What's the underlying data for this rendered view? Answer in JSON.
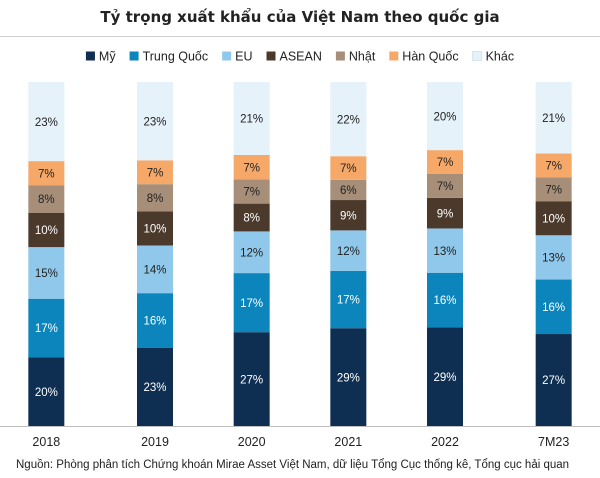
{
  "chart_data": {
    "type": "bar",
    "stacked": true,
    "normalized": true,
    "title": "Tỷ trọng xuất khẩu của Việt Nam theo quốc gia",
    "categories": [
      "2018",
      "2019",
      "2020",
      "2021",
      "2022",
      "7M23"
    ],
    "ylim": [
      0,
      100
    ],
    "grid": false,
    "legend_position": "top",
    "series": [
      {
        "name": "Mỹ",
        "color": "#0f2f52",
        "values": [
          20,
          23,
          27,
          29,
          29,
          27
        ],
        "labels": [
          "20%",
          "23%",
          "27%",
          "29%",
          "29%",
          "27%"
        ]
      },
      {
        "name": "Trung Quốc",
        "color": "#0b85bb",
        "values": [
          17,
          16,
          17,
          17,
          16,
          16
        ],
        "labels": [
          "17%",
          "16%",
          "17%",
          "17%",
          "16%",
          "16%"
        ]
      },
      {
        "name": "EU",
        "color": "#8fc8ea",
        "values": [
          15,
          14,
          12,
          12,
          13,
          13
        ],
        "labels": [
          "15%",
          "14%",
          "12%",
          "12%",
          "13%",
          "13%"
        ]
      },
      {
        "name": "ASEAN",
        "color": "#4b3a2c",
        "values": [
          10,
          10,
          8,
          9,
          9,
          10
        ],
        "labels": [
          "10%",
          "10%",
          "8%",
          "9%",
          "9%",
          "10%"
        ]
      },
      {
        "name": "Nhật",
        "color": "#a68e78",
        "values": [
          8,
          8,
          7,
          6,
          7,
          7
        ],
        "labels": [
          "8%",
          "8%",
          "7%",
          "6%",
          "7%",
          "7%"
        ]
      },
      {
        "name": "Hàn Quốc",
        "color": "#f6a868",
        "values": [
          7,
          7,
          7,
          7,
          7,
          7
        ],
        "labels": [
          "7%",
          "7%",
          "7%",
          "7%",
          "7%",
          "7%"
        ]
      },
      {
        "name": "Khác",
        "color": "#e6f2fa",
        "values": [
          23,
          23,
          21,
          22,
          20,
          21
        ],
        "labels": [
          "23%",
          "23%",
          "21%",
          "22%",
          "20%",
          "21%"
        ]
      }
    ]
  },
  "source": "Nguồn: Phòng phân tích Chứng khoán Mirae Asset Việt Nam, dữ liệu Tổng Cục thống kê, Tổng cục hải quan"
}
